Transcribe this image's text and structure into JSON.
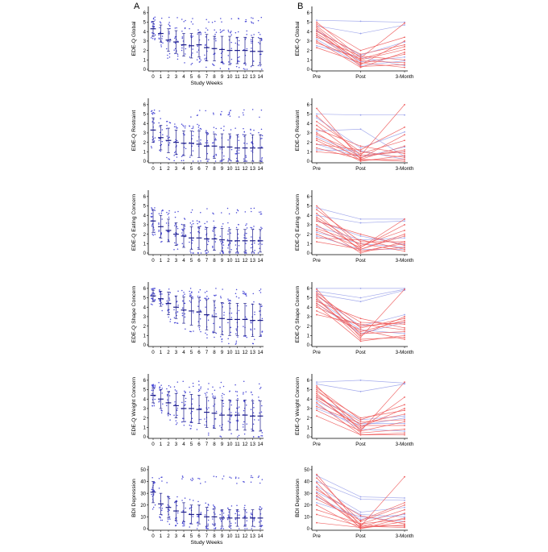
{
  "figure": {
    "panel_a_letter": "A",
    "panel_b_letter": "B"
  },
  "colors": {
    "dots": "#4a4ad6",
    "summary": "#1b1b8a",
    "group_blue": "#9aa2ea",
    "group_red": "#ee5a5a",
    "axis": "#000000"
  },
  "chart_data": [
    {
      "type": "scatter",
      "panel": "A",
      "ylabel": "EDE-Q Global",
      "xlabel": "Study Weeks",
      "categories": [
        "0",
        "1",
        "2",
        "3",
        "4",
        "5",
        "6",
        "7",
        "8",
        "9",
        "10",
        "11",
        "12",
        "13",
        "14"
      ],
      "yticks": [
        0,
        1,
        2,
        3,
        4,
        5,
        6
      ],
      "ylim": [
        0,
        6.5
      ],
      "means": [
        4.3,
        3.8,
        3.1,
        2.9,
        2.6,
        2.5,
        2.6,
        2.3,
        2.2,
        2.1,
        2.0,
        2.0,
        2.0,
        1.9,
        1.9
      ],
      "sds": [
        0.8,
        0.9,
        1.2,
        1.2,
        1.2,
        1.3,
        1.3,
        1.4,
        1.3,
        1.4,
        1.5,
        1.4,
        1.4,
        1.5,
        1.4
      ],
      "point_max": 5.6
    },
    {
      "type": "scatter",
      "panel": "A",
      "ylabel": "EDE-Q Restraint",
      "xlabel": "",
      "categories": [
        "0",
        "1",
        "2",
        "3",
        "4",
        "5",
        "6",
        "7",
        "8",
        "9",
        "10",
        "11",
        "12",
        "13",
        "14"
      ],
      "yticks": [
        0,
        1,
        2,
        3,
        4,
        5,
        6
      ],
      "ylim": [
        0,
        6.5
      ],
      "means": [
        3.3,
        2.5,
        2.2,
        2.0,
        1.9,
        1.9,
        1.8,
        1.6,
        1.6,
        1.5,
        1.5,
        1.4,
        1.4,
        1.4,
        1.4
      ],
      "sds": [
        1.3,
        1.3,
        1.3,
        1.3,
        1.3,
        1.3,
        1.4,
        1.4,
        1.3,
        1.4,
        1.4,
        1.4,
        1.4,
        1.4,
        1.4
      ],
      "point_max": 5.5
    },
    {
      "type": "scatter",
      "panel": "A",
      "ylabel": "EDE-Q Eating Concern",
      "xlabel": "",
      "categories": [
        "0",
        "1",
        "2",
        "3",
        "4",
        "5",
        "6",
        "7",
        "8",
        "9",
        "10",
        "11",
        "12",
        "13",
        "14"
      ],
      "yticks": [
        0,
        1,
        2,
        3,
        4,
        5,
        6
      ],
      "ylim": [
        0,
        6.5
      ],
      "means": [
        3.4,
        2.8,
        2.4,
        2.0,
        1.8,
        1.6,
        1.6,
        1.5,
        1.5,
        1.4,
        1.3,
        1.3,
        1.3,
        1.3,
        1.3
      ],
      "sds": [
        1.2,
        1.2,
        1.2,
        1.2,
        1.2,
        1.2,
        1.2,
        1.2,
        1.2,
        1.2,
        1.2,
        1.2,
        1.2,
        1.2,
        1.2
      ],
      "point_max": 4.8
    },
    {
      "type": "scatter",
      "panel": "A",
      "ylabel": "EDE-Q Shape Concern",
      "xlabel": "",
      "categories": [
        "0",
        "1",
        "2",
        "3",
        "4",
        "5",
        "6",
        "7",
        "8",
        "9",
        "10",
        "11",
        "12",
        "13",
        "14"
      ],
      "yticks": [
        0,
        1,
        2,
        3,
        4,
        5,
        6
      ],
      "ylim": [
        0,
        6.5
      ],
      "means": [
        5.2,
        4.9,
        4.4,
        4.0,
        3.7,
        3.6,
        3.5,
        3.2,
        3.0,
        2.8,
        2.7,
        2.7,
        2.7,
        2.6,
        2.6
      ],
      "sds": [
        0.6,
        0.8,
        1.2,
        1.2,
        1.4,
        1.5,
        1.5,
        1.6,
        1.7,
        1.7,
        1.7,
        1.7,
        1.7,
        1.7,
        1.7
      ],
      "point_max": 6.0
    },
    {
      "type": "scatter",
      "panel": "A",
      "ylabel": "EDE-Q Weight Concern",
      "xlabel": "",
      "categories": [
        "0",
        "1",
        "2",
        "3",
        "4",
        "5",
        "6",
        "7",
        "8",
        "9",
        "10",
        "11",
        "12",
        "13",
        "14"
      ],
      "yticks": [
        0,
        1,
        2,
        3,
        4,
        5,
        6
      ],
      "ylim": [
        0,
        6.5
      ],
      "means": [
        4.4,
        4.0,
        3.6,
        3.3,
        3.0,
        3.0,
        2.9,
        2.6,
        2.5,
        2.3,
        2.3,
        2.3,
        2.3,
        2.2,
        2.2
      ],
      "sds": [
        0.8,
        1.0,
        1.2,
        1.3,
        1.4,
        1.5,
        1.5,
        1.6,
        1.6,
        1.6,
        1.6,
        1.6,
        1.6,
        1.6,
        1.6
      ],
      "point_max": 6.0
    },
    {
      "type": "scatter",
      "panel": "A",
      "ylabel": "BDI Depression",
      "xlabel": "Study Weeks",
      "categories": [
        "0",
        "1",
        "2",
        "3",
        "4",
        "5",
        "6",
        "7",
        "8",
        "9",
        "10",
        "11",
        "12",
        "13",
        "14"
      ],
      "yticks": [
        0,
        10,
        20,
        30,
        40,
        50
      ],
      "ylim": [
        0,
        52
      ],
      "means": [
        31,
        21,
        18,
        15,
        14,
        12,
        12,
        10,
        10,
        9,
        9,
        9,
        9,
        9,
        9
      ],
      "sds": [
        9,
        9,
        9,
        8,
        8,
        8,
        8,
        8,
        7,
        7,
        7,
        7,
        7,
        7,
        7
      ],
      "point_max": 45
    },
    {
      "type": "line",
      "panel": "B",
      "ylabel": "EDE-Q Global",
      "xlabel": "",
      "categories": [
        "Pre",
        "Post",
        "3-Month"
      ],
      "yticks": [
        0,
        1,
        2,
        3,
        4,
        5,
        6
      ],
      "ylim": [
        0,
        6.5
      ],
      "series_blue": [
        [
          5.2,
          5.1,
          5.0
        ],
        [
          4.6,
          3.8,
          4.7
        ],
        [
          4.1,
          1.5,
          2.9
        ],
        [
          3.6,
          0.8,
          1.3
        ],
        [
          3.2,
          0.4,
          0.9
        ],
        [
          2.5,
          1.3,
          0.4
        ]
      ],
      "series_red": [
        [
          5.0,
          1.2,
          4.9
        ],
        [
          4.8,
          2.0,
          3.4
        ],
        [
          4.6,
          1.0,
          2.1
        ],
        [
          4.4,
          0.6,
          1.6
        ],
        [
          4.2,
          0.3,
          0.5
        ],
        [
          4.0,
          1.6,
          2.6
        ],
        [
          3.8,
          0.9,
          0.7
        ],
        [
          3.6,
          0.5,
          3.0
        ],
        [
          3.4,
          1.4,
          1.0
        ],
        [
          3.0,
          0.2,
          1.8
        ],
        [
          2.8,
          1.1,
          2.4
        ],
        [
          2.3,
          0.7,
          0.2
        ]
      ]
    },
    {
      "type": "line",
      "panel": "B",
      "ylabel": "EDE-Q Restraint",
      "xlabel": "",
      "categories": [
        "Pre",
        "Post",
        "3-Month"
      ],
      "yticks": [
        0,
        1,
        2,
        3,
        4,
        5,
        6
      ],
      "ylim": [
        0,
        6.5
      ],
      "series_blue": [
        [
          5.0,
          4.9,
          4.9
        ],
        [
          4.6,
          1.4,
          3.1
        ],
        [
          3.2,
          3.4,
          0.5
        ],
        [
          2.6,
          0.6,
          1.0
        ],
        [
          1.8,
          0.4,
          1.5
        ],
        [
          1.2,
          1.1,
          0.2
        ]
      ],
      "series_red": [
        [
          5.6,
          0.2,
          1.6
        ],
        [
          4.8,
          0.6,
          6.0
        ],
        [
          4.2,
          1.0,
          0.4
        ],
        [
          3.8,
          0.3,
          2.8
        ],
        [
          3.4,
          1.6,
          0.8
        ],
        [
          3.0,
          0.1,
          0.2
        ],
        [
          2.8,
          0.8,
          2.2
        ],
        [
          2.4,
          0.4,
          1.2
        ],
        [
          2.2,
          0.0,
          0.6
        ],
        [
          1.8,
          1.2,
          3.6
        ],
        [
          1.4,
          0.2,
          0.0
        ],
        [
          1.0,
          0.6,
          1.0
        ]
      ]
    },
    {
      "type": "line",
      "panel": "B",
      "ylabel": "EDE-Q Eating Concern",
      "xlabel": "",
      "categories": [
        "Pre",
        "Post",
        "3-Month"
      ],
      "yticks": [
        0,
        1,
        2,
        3,
        4,
        5,
        6
      ],
      "ylim": [
        0,
        6.5
      ],
      "series_blue": [
        [
          4.8,
          3.6,
          3.6
        ],
        [
          4.0,
          3.2,
          3.4
        ],
        [
          3.4,
          1.8,
          0.9
        ],
        [
          2.8,
          1.4,
          1.6
        ],
        [
          2.2,
          1.0,
          0.6
        ],
        [
          1.8,
          0.4,
          0.4
        ]
      ],
      "series_red": [
        [
          5.0,
          0.6,
          3.6
        ],
        [
          4.6,
          1.2,
          1.2
        ],
        [
          4.2,
          0.2,
          0.6
        ],
        [
          3.8,
          0.8,
          2.4
        ],
        [
          3.6,
          0.4,
          1.8
        ],
        [
          3.4,
          2.0,
          0.8
        ],
        [
          3.0,
          0.0,
          1.2
        ],
        [
          2.6,
          1.0,
          0.2
        ],
        [
          2.4,
          0.6,
          3.0
        ],
        [
          2.0,
          0.2,
          1.0
        ],
        [
          1.6,
          1.4,
          0.4
        ],
        [
          1.2,
          0.4,
          2.0
        ]
      ]
    },
    {
      "type": "line",
      "panel": "B",
      "ylabel": "EDE-Q Shape Concern",
      "xlabel": "",
      "categories": [
        "Pre",
        "Post",
        "3-Month"
      ],
      "yticks": [
        0,
        1,
        2,
        3,
        4,
        5,
        6
      ],
      "ylim": [
        0,
        6.5
      ],
      "series_blue": [
        [
          6.0,
          6.0,
          6.0
        ],
        [
          5.7,
          5.0,
          5.9
        ],
        [
          5.4,
          4.6,
          5.8
        ],
        [
          5.2,
          2.0,
          3.2
        ],
        [
          4.8,
          1.6,
          1.2
        ],
        [
          4.4,
          1.2,
          2.4
        ]
      ],
      "series_red": [
        [
          5.9,
          0.8,
          5.9
        ],
        [
          5.6,
          1.8,
          2.8
        ],
        [
          5.4,
          1.2,
          1.4
        ],
        [
          5.2,
          2.4,
          2.2
        ],
        [
          5.0,
          0.6,
          0.8
        ],
        [
          4.8,
          1.0,
          3.0
        ],
        [
          4.6,
          2.8,
          1.8
        ],
        [
          4.4,
          1.4,
          2.6
        ],
        [
          4.2,
          0.4,
          1.0
        ],
        [
          4.0,
          2.0,
          2.4
        ],
        [
          3.6,
          1.6,
          0.6
        ],
        [
          3.2,
          2.2,
          1.6
        ]
      ]
    },
    {
      "type": "line",
      "panel": "B",
      "ylabel": "EDE-Q Weight Concern",
      "xlabel": "",
      "categories": [
        "Pre",
        "Post",
        "3-Month"
      ],
      "yticks": [
        0,
        1,
        2,
        3,
        4,
        5,
        6
      ],
      "ylim": [
        0,
        6.5
      ],
      "series_blue": [
        [
          5.8,
          6.0,
          5.7
        ],
        [
          5.6,
          4.8,
          5.6
        ],
        [
          4.2,
          1.8,
          2.2
        ],
        [
          3.8,
          1.4,
          1.4
        ],
        [
          3.4,
          0.8,
          0.6
        ],
        [
          3.0,
          1.2,
          2.0
        ]
      ],
      "series_red": [
        [
          5.4,
          0.6,
          5.8
        ],
        [
          5.2,
          1.8,
          3.4
        ],
        [
          5.0,
          1.2,
          1.2
        ],
        [
          4.8,
          2.0,
          2.8
        ],
        [
          4.6,
          0.4,
          0.8
        ],
        [
          4.4,
          0.8,
          4.2
        ],
        [
          4.2,
          1.6,
          1.8
        ],
        [
          4.0,
          1.0,
          3.0
        ],
        [
          3.6,
          0.2,
          0.4
        ],
        [
          3.2,
          1.4,
          2.4
        ],
        [
          2.8,
          0.6,
          1.6
        ],
        [
          2.2,
          0.2,
          0.2
        ]
      ]
    },
    {
      "type": "line",
      "panel": "B",
      "ylabel": "BDI Depression",
      "xlabel": "",
      "categories": [
        "Pre",
        "Post",
        "3-Month"
      ],
      "yticks": [
        0,
        10,
        20,
        30,
        40,
        50
      ],
      "ylim": [
        0,
        52
      ],
      "series_blue": [
        [
          45,
          27,
          26
        ],
        [
          40,
          25,
          24
        ],
        [
          36,
          14,
          18
        ],
        [
          31,
          12,
          10
        ],
        [
          27,
          8,
          12
        ],
        [
          22,
          10,
          6
        ]
      ],
      "series_red": [
        [
          46,
          2,
          44
        ],
        [
          43,
          6,
          20
        ],
        [
          39,
          0,
          9
        ],
        [
          35,
          4,
          16
        ],
        [
          33,
          11,
          4
        ],
        [
          30,
          1,
          13
        ],
        [
          28,
          3,
          2
        ],
        [
          25,
          7,
          22
        ],
        [
          20,
          0,
          6
        ],
        [
          16,
          4,
          8
        ],
        [
          12,
          2,
          1
        ],
        [
          5,
          1,
          3
        ]
      ]
    }
  ]
}
